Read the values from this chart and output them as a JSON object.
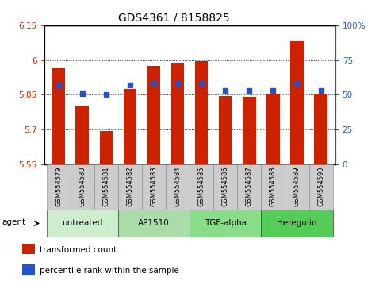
{
  "title": "GDS4361 / 8158825",
  "samples": [
    "GSM554579",
    "GSM554580",
    "GSM554581",
    "GSM554582",
    "GSM554583",
    "GSM554584",
    "GSM554585",
    "GSM554586",
    "GSM554587",
    "GSM554588",
    "GSM554589",
    "GSM554590"
  ],
  "red_values": [
    5.965,
    5.805,
    5.695,
    5.875,
    5.975,
    5.99,
    5.995,
    5.845,
    5.84,
    5.855,
    6.08,
    5.855
  ],
  "blue_values": [
    57,
    51,
    50,
    57,
    58,
    58,
    58,
    53,
    53,
    53,
    58,
    53
  ],
  "ylim_left": [
    5.55,
    6.15
  ],
  "ylim_right": [
    0,
    100
  ],
  "yticks_left": [
    5.55,
    5.7,
    5.85,
    6.0,
    6.15
  ],
  "yticks_right": [
    0,
    25,
    50,
    75,
    100
  ],
  "ytick_labels_left": [
    "5.55",
    "5.7",
    "5.85",
    "6",
    "6.15"
  ],
  "ytick_labels_right": [
    "0",
    "25",
    "50",
    "75",
    "100%"
  ],
  "hlines": [
    5.7,
    5.85,
    6.0
  ],
  "bar_color": "#cc2200",
  "dot_color": "#2255cc",
  "bar_width": 0.55,
  "agents": [
    {
      "label": "untreated",
      "start": 0,
      "end": 3,
      "color": "#cceecc"
    },
    {
      "label": "AP1510",
      "start": 3,
      "end": 6,
      "color": "#aaddaa"
    },
    {
      "label": "TGF-alpha",
      "start": 6,
      "end": 9,
      "color": "#88dd88"
    },
    {
      "label": "Heregulin",
      "start": 9,
      "end": 12,
      "color": "#55cc55"
    }
  ],
  "agent_label": "agent",
  "legend_items": [
    {
      "color": "#cc2200",
      "label": "transformed count"
    },
    {
      "color": "#2255cc",
      "label": "percentile rank within the sample"
    }
  ],
  "tick_color_left": "#cc2200",
  "tick_color_right": "#2255cc",
  "plot_bg": "#ffffff",
  "sample_box_color": "#cccccc",
  "sample_box_edge": "#888888"
}
